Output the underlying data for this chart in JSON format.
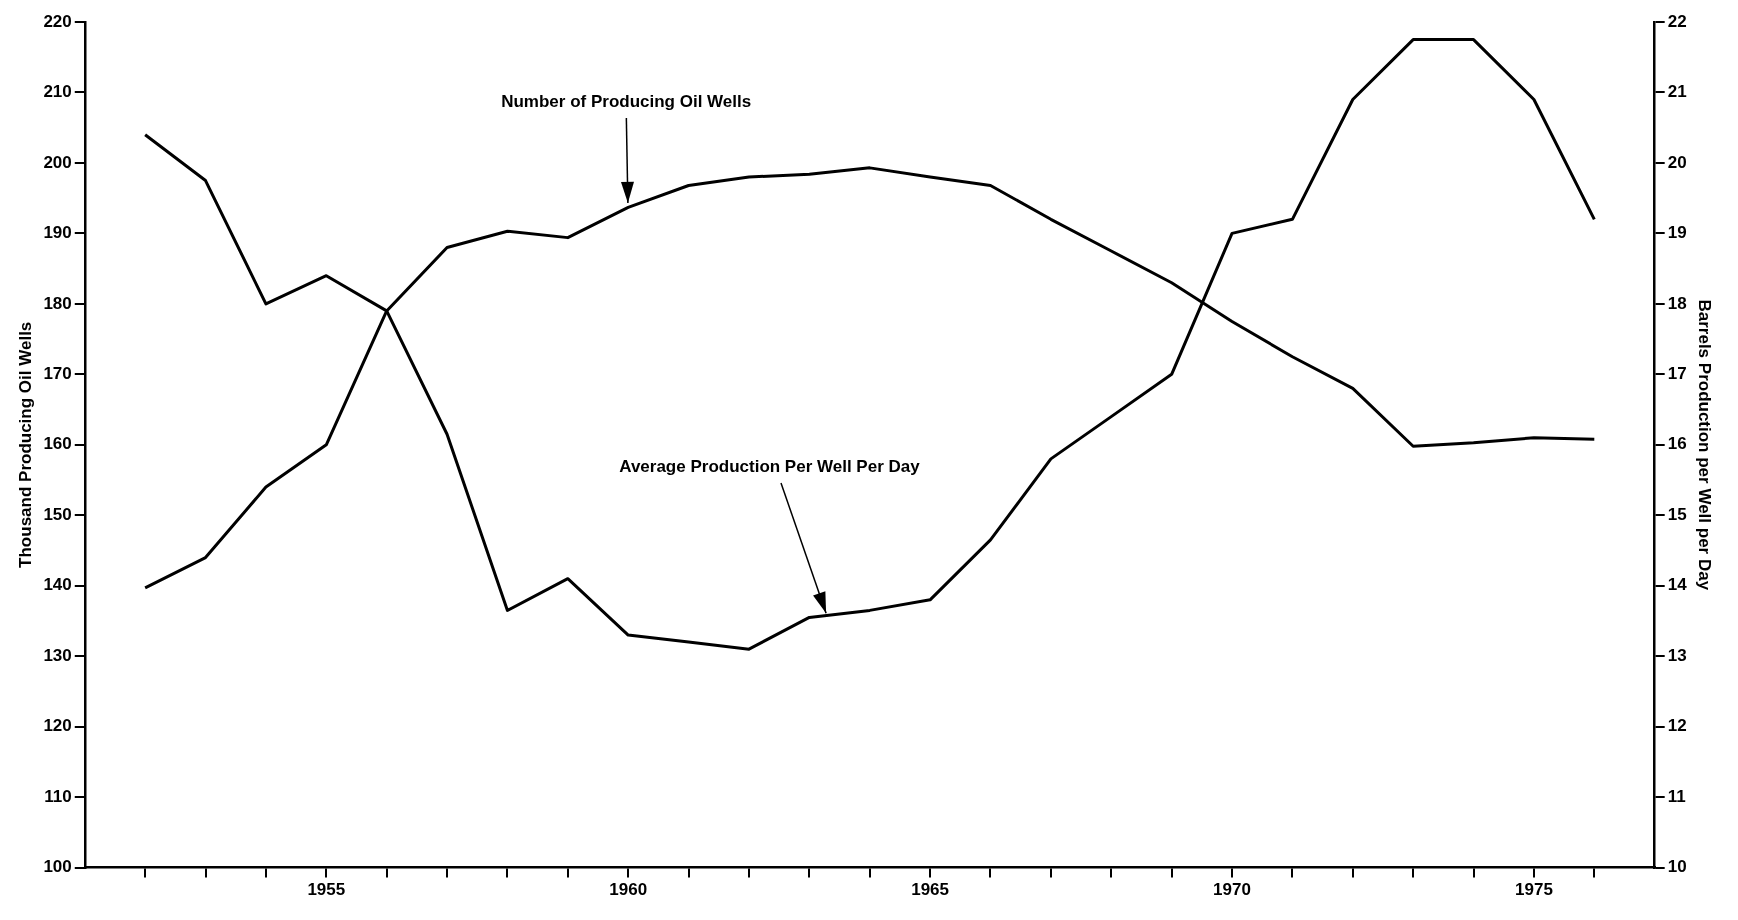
{
  "chart_data": {
    "type": "line",
    "xlabel": null,
    "ylabel": "Thousand Producing Oil Wells",
    "y2label": "Barrels Production per Well per Day",
    "x": [
      1952,
      1953,
      1954,
      1955,
      1956,
      1957,
      1958,
      1959,
      1960,
      1961,
      1962,
      1963,
      1964,
      1965,
      1966,
      1967,
      1968,
      1969,
      1970,
      1971,
      1972,
      1973,
      1974,
      1975,
      1976
    ],
    "series": [
      {
        "color": "#000000",
        "values": [
          139.7,
          144,
          154,
          160,
          179,
          188,
          190.3,
          189.4,
          193.7,
          196.8,
          198,
          198.4,
          199.3,
          198,
          196.8,
          192,
          187.5,
          183,
          177.5,
          172.5,
          168,
          159.8,
          160.3,
          161,
          160.8
        ]
      },
      {
        "color": "#000000",
        "axis": "y2",
        "values": [
          20.4,
          19.75,
          18,
          18.4,
          17.9,
          16.15,
          13.65,
          14.1,
          13.3,
          13.2,
          13.1,
          13.55,
          13.65,
          13.8,
          14.65,
          15.8,
          16.4,
          17,
          19,
          19.2,
          20.9,
          21.75,
          21.75,
          20.9,
          19.2
        ]
      }
    ],
    "xlim": [
      1951,
      1977
    ],
    "xticks": [
      {
        "value": 1952,
        "label": null
      },
      {
        "value": 1953,
        "label": null
      },
      {
        "value": 1954,
        "label": null
      },
      1955,
      {
        "value": 1956,
        "label": null
      },
      {
        "value": 1957,
        "label": null
      },
      {
        "value": 1958,
        "label": null
      },
      {
        "value": 1959,
        "label": null
      },
      1960,
      {
        "value": 1961,
        "label": null
      },
      {
        "value": 1962,
        "label": null
      },
      {
        "value": 1963,
        "label": null
      },
      {
        "value": 1964,
        "label": null
      },
      1965,
      {
        "value": 1966,
        "label": null
      },
      {
        "value": 1967,
        "label": null
      },
      {
        "value": 1968,
        "label": null
      },
      {
        "value": 1969,
        "label": null
      },
      1970,
      {
        "value": 1971,
        "label": null
      },
      {
        "value": 1972,
        "label": null
      },
      {
        "value": 1973,
        "label": null
      },
      {
        "value": 1974,
        "label": null
      },
      1975,
      {
        "value": 1976,
        "label": null
      }
    ],
    "ylim": [
      100,
      220
    ],
    "yticks": [
      100,
      110,
      120,
      130,
      140,
      150,
      160,
      170,
      180,
      190,
      200,
      210,
      220
    ],
    "y2lim": [
      10,
      22
    ],
    "y2ticks": [
      10,
      11,
      12,
      13,
      14,
      15,
      16,
      17,
      18,
      19,
      20,
      21,
      22
    ],
    "annotations": [
      {
        "text": "Number of Producing Oil Wells",
        "x": 1960,
        "y": 193.7
      },
      {
        "text": "Average Production Per Well Per Day",
        "x": 1963.3,
        "y": 135.5
      }
    ],
    "grid": false,
    "legend": false
  }
}
